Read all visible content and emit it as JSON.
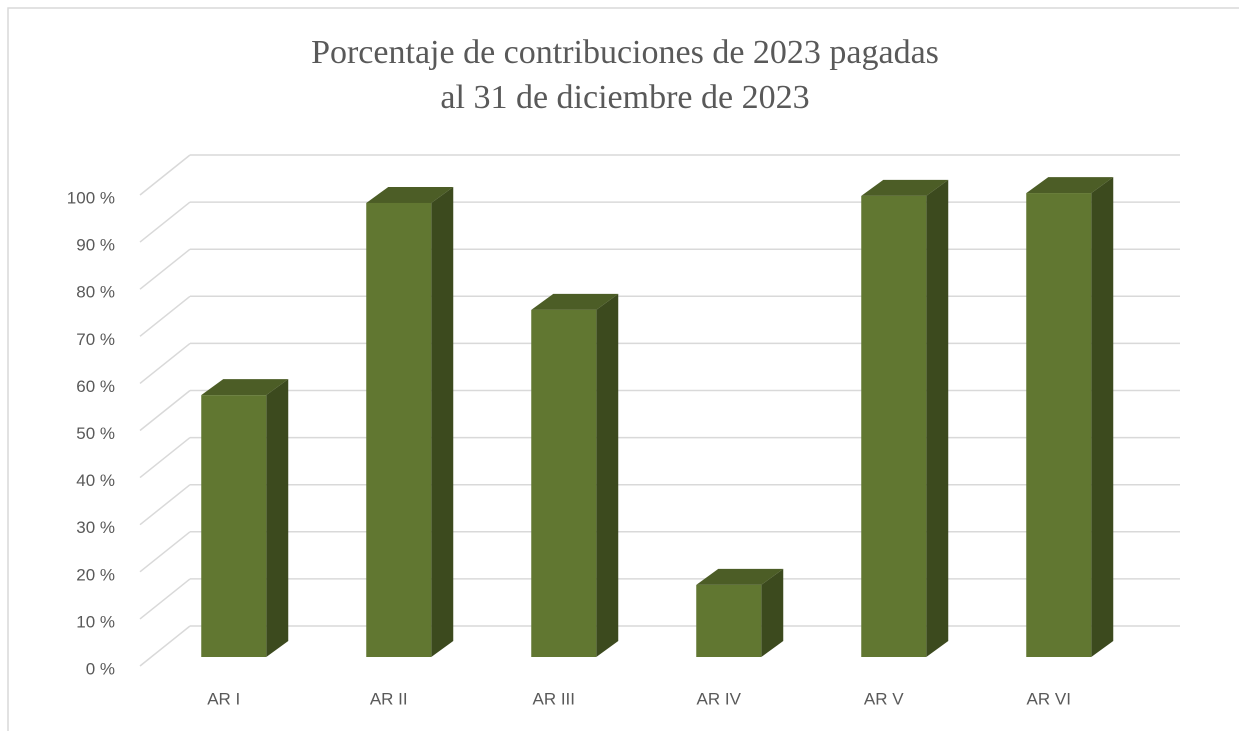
{
  "chart_data": {
    "type": "bar3d",
    "title": [
      "Porcentaje de contribuciones de 2023 pagadas",
      "al 31 de diciembre de 2023"
    ],
    "categories": [
      "AR I",
      "AR II",
      "AR III",
      "AR IV",
      "AR V",
      "AR VI"
    ],
    "values": [
      55.6,
      96.4,
      73.7,
      15.3,
      97.9,
      98.5
    ],
    "color": "#617731",
    "ylim": [
      0,
      100
    ],
    "yticks": [
      {
        "value": 0,
        "label": "0 %"
      },
      {
        "value": 10,
        "label": "10 %"
      },
      {
        "value": 20,
        "label": "20 %"
      },
      {
        "value": 30,
        "label": "30 %"
      },
      {
        "value": 40,
        "label": "40 %"
      },
      {
        "value": 50,
        "label": "50 %"
      },
      {
        "value": 60,
        "label": "60 %"
      },
      {
        "value": 70,
        "label": "70 %"
      },
      {
        "value": 80,
        "label": "80 %"
      },
      {
        "value": 90,
        "label": "90 %"
      },
      {
        "value": 100,
        "label": "100 %"
      }
    ],
    "grid": true
  }
}
